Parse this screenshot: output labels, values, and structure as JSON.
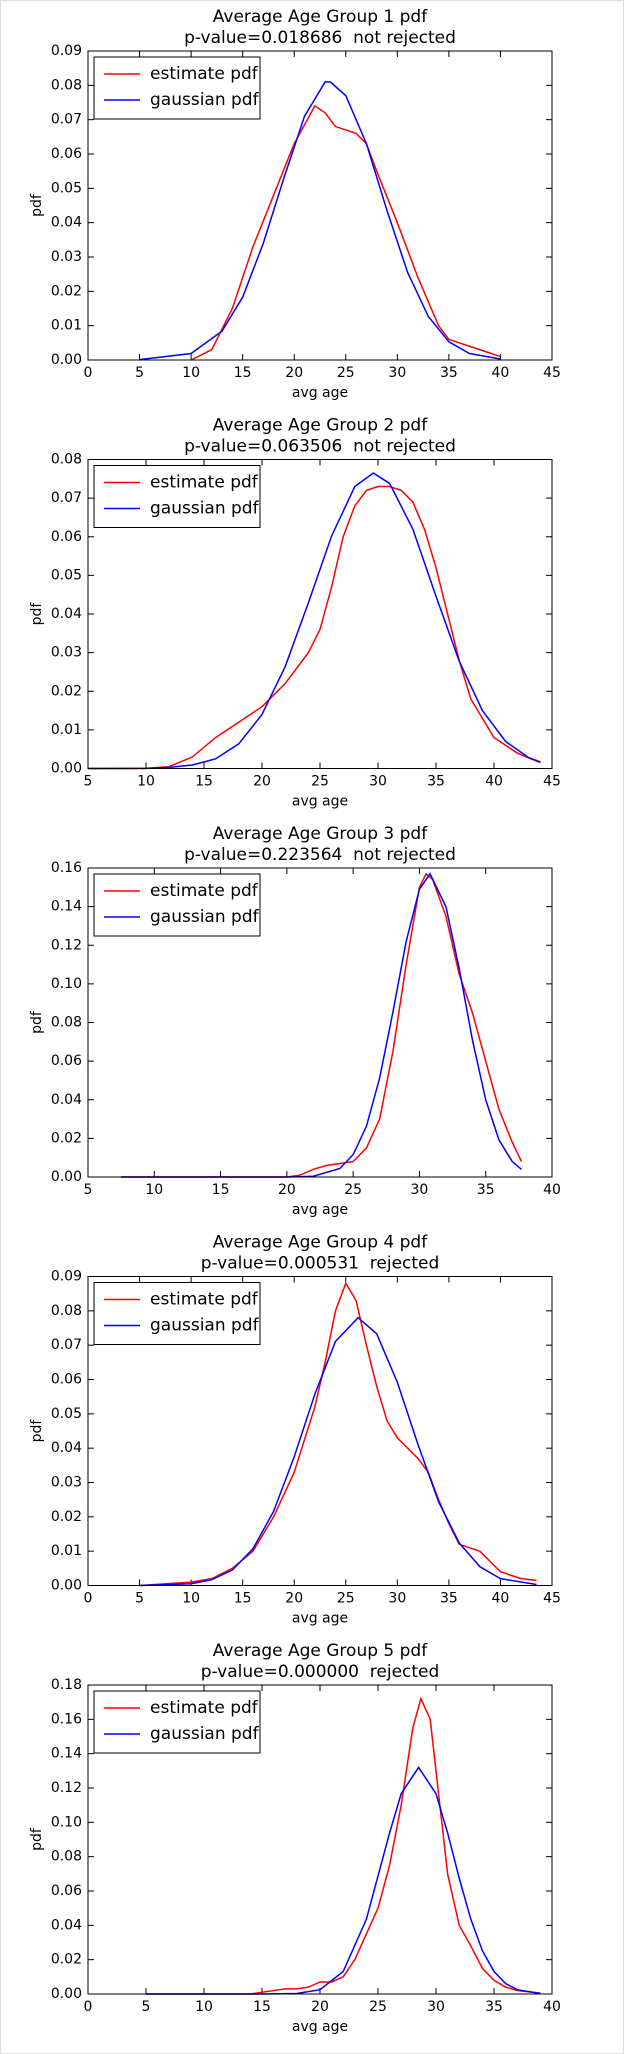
{
  "chart_data": [
    {
      "type": "line",
      "title": "Average Age Group 1 pdf",
      "subtitle": "p-value=0.018686  not rejected",
      "xlabel": "avg age",
      "ylabel": "pdf",
      "legend": "upper left",
      "grid": false,
      "xlim": [
        0,
        45
      ],
      "xticks": [
        0,
        5,
        10,
        15,
        20,
        25,
        30,
        35,
        40,
        45
      ],
      "ylim": [
        0,
        0.09
      ],
      "yticks": [
        {
          "value": 0,
          "label": "0.00"
        },
        {
          "value": 0.01,
          "label": "0.01"
        },
        {
          "value": 0.02,
          "label": "0.02"
        },
        {
          "value": 0.03,
          "label": "0.03"
        },
        {
          "value": 0.04,
          "label": "0.04"
        },
        {
          "value": 0.05,
          "label": "0.05"
        },
        {
          "value": 0.06,
          "label": "0.06"
        },
        {
          "value": 0.07,
          "label": "0.07"
        },
        {
          "value": 0.08,
          "label": "0.08"
        },
        {
          "value": 0.09,
          "label": "0.09"
        }
      ],
      "series": [
        {
          "name": "estimate pdf",
          "color": "#ff0000",
          "x": [
            10,
            12,
            14,
            16,
            18,
            20,
            22,
            23,
            24,
            25,
            26,
            27,
            28,
            30,
            32,
            34,
            35,
            37,
            39,
            40
          ],
          "values": [
            0.0,
            0.003,
            0.015,
            0.033,
            0.048,
            0.063,
            0.074,
            0.072,
            0.068,
            0.067,
            0.066,
            0.063,
            0.055,
            0.04,
            0.024,
            0.01,
            0.006,
            0.004,
            0.002,
            0.001
          ]
        },
        {
          "name": "gaussian pdf",
          "color": "#0000ff",
          "x": [
            5,
            10,
            13,
            15,
            17,
            19,
            21,
            23,
            23.5,
            25,
            27,
            29,
            31,
            33,
            35,
            37,
            40
          ],
          "values": [
            0.0001,
            0.0019,
            0.0084,
            0.0183,
            0.034,
            0.053,
            0.071,
            0.081,
            0.081,
            0.077,
            0.063,
            0.0435,
            0.0255,
            0.0127,
            0.0053,
            0.0019,
            0.0003
          ]
        }
      ]
    },
    {
      "type": "line",
      "title": "Average Age Group 2 pdf",
      "subtitle": "p-value=0.063506  not rejected",
      "xlabel": "avg age",
      "ylabel": "pdf",
      "legend": "upper left",
      "grid": false,
      "xlim": [
        5,
        45
      ],
      "xticks": [
        5,
        10,
        15,
        20,
        25,
        30,
        35,
        40,
        45
      ],
      "ylim": [
        0,
        0.08
      ],
      "yticks": [
        {
          "value": 0,
          "label": "0.00"
        },
        {
          "value": 0.01,
          "label": "0.01"
        },
        {
          "value": 0.02,
          "label": "0.02"
        },
        {
          "value": 0.03,
          "label": "0.03"
        },
        {
          "value": 0.04,
          "label": "0.04"
        },
        {
          "value": 0.05,
          "label": "0.05"
        },
        {
          "value": 0.06,
          "label": "0.06"
        },
        {
          "value": 0.07,
          "label": "0.07"
        },
        {
          "value": 0.08,
          "label": "0.08"
        }
      ],
      "series": [
        {
          "name": "estimate pdf",
          "color": "#ff0000",
          "x": [
            5,
            10,
            12,
            14,
            16,
            18,
            20,
            22,
            24,
            25,
            26,
            27,
            28,
            29,
            30,
            31,
            32,
            33,
            34,
            35,
            36,
            37,
            38,
            40,
            42,
            44
          ],
          "values": [
            0,
            0,
            0.0005,
            0.003,
            0.008,
            0.012,
            0.016,
            0.022,
            0.03,
            0.036,
            0.047,
            0.06,
            0.068,
            0.072,
            0.073,
            0.073,
            0.072,
            0.069,
            0.062,
            0.052,
            0.04,
            0.028,
            0.018,
            0.008,
            0.004,
            0.0015
          ]
        },
        {
          "name": "gaussian pdf",
          "color": "#0000ff",
          "x": [
            5,
            10,
            12,
            14,
            16,
            18,
            20,
            22,
            24,
            26,
            28,
            29.6,
            31,
            33,
            35,
            37,
            39,
            41,
            43,
            44
          ],
          "values": [
            0,
            7e-05,
            0.0003,
            0.0009,
            0.0025,
            0.0064,
            0.014,
            0.0264,
            0.0429,
            0.0602,
            0.073,
            0.0765,
            0.0738,
            0.062,
            0.0446,
            0.0278,
            0.015,
            0.007,
            0.0028,
            0.0017
          ]
        }
      ]
    },
    {
      "type": "line",
      "title": "Average Age Group 3 pdf",
      "subtitle": "p-value=0.223564  not rejected",
      "xlabel": "avg age",
      "ylabel": "pdf",
      "legend": "upper left",
      "grid": false,
      "xlim": [
        5,
        40
      ],
      "xticks": [
        5,
        10,
        15,
        20,
        25,
        30,
        35,
        40
      ],
      "ylim": [
        0,
        0.16
      ],
      "yticks": [
        {
          "value": 0,
          "label": "0.00"
        },
        {
          "value": 0.02,
          "label": "0.02"
        },
        {
          "value": 0.04,
          "label": "0.04"
        },
        {
          "value": 0.06,
          "label": "0.06"
        },
        {
          "value": 0.08,
          "label": "0.08"
        },
        {
          "value": 0.1,
          "label": "0.10"
        },
        {
          "value": 0.12,
          "label": "0.12"
        },
        {
          "value": 0.14,
          "label": "0.14"
        },
        {
          "value": 0.16,
          "label": "0.16"
        }
      ],
      "series": [
        {
          "name": "estimate pdf",
          "color": "#ff0000",
          "x": [
            7.5,
            20,
            21,
            22,
            23,
            24,
            25,
            26,
            27,
            28,
            29,
            30,
            30.5,
            31,
            32,
            33,
            34,
            35,
            36,
            37,
            37.7
          ],
          "values": [
            0,
            0,
            0.001,
            0.004,
            0.006,
            0.007,
            0.008,
            0.015,
            0.03,
            0.065,
            0.11,
            0.15,
            0.157,
            0.154,
            0.135,
            0.105,
            0.085,
            0.06,
            0.035,
            0.018,
            0.008
          ]
        },
        {
          "name": "gaussian pdf",
          "color": "#0000ff",
          "x": [
            7.5,
            20,
            22,
            24,
            25,
            26,
            27,
            28,
            29,
            30,
            30.8,
            32,
            33,
            34,
            35,
            36,
            37,
            37.7
          ],
          "values": [
            0,
            2e-05,
            0.0004,
            0.0044,
            0.0116,
            0.0262,
            0.0513,
            0.0854,
            0.122,
            0.149,
            0.157,
            0.14,
            0.108,
            0.0709,
            0.04,
            0.0192,
            0.008,
            0.0039
          ]
        }
      ]
    },
    {
      "type": "line",
      "title": "Average Age Group 4 pdf",
      "subtitle": "p-value=0.000531  rejected",
      "xlabel": "avg age",
      "ylabel": "pdf",
      "legend": "upper left",
      "grid": false,
      "xlim": [
        0,
        45
      ],
      "xticks": [
        0,
        5,
        10,
        15,
        20,
        25,
        30,
        35,
        40,
        45
      ],
      "ylim": [
        0,
        0.09
      ],
      "yticks": [
        {
          "value": 0,
          "label": "0.00"
        },
        {
          "value": 0.01,
          "label": "0.01"
        },
        {
          "value": 0.02,
          "label": "0.02"
        },
        {
          "value": 0.03,
          "label": "0.03"
        },
        {
          "value": 0.04,
          "label": "0.04"
        },
        {
          "value": 0.05,
          "label": "0.05"
        },
        {
          "value": 0.06,
          "label": "0.06"
        },
        {
          "value": 0.07,
          "label": "0.07"
        },
        {
          "value": 0.08,
          "label": "0.08"
        },
        {
          "value": 0.09,
          "label": "0.09"
        }
      ],
      "series": [
        {
          "name": "estimate pdf",
          "color": "#ff0000",
          "x": [
            5,
            10,
            12,
            14,
            16,
            18,
            20,
            22,
            23,
            24,
            25,
            26,
            27,
            28,
            29,
            30,
            32,
            33,
            34,
            35,
            36,
            38,
            39,
            40,
            42,
            43.5
          ],
          "values": [
            0,
            0.001,
            0.002,
            0.005,
            0.01,
            0.02,
            0.033,
            0.052,
            0.065,
            0.08,
            0.088,
            0.083,
            0.07,
            0.058,
            0.048,
            0.043,
            0.037,
            0.033,
            0.025,
            0.018,
            0.012,
            0.01,
            0.007,
            0.004,
            0.002,
            0.0015
          ]
        },
        {
          "name": "gaussian pdf",
          "color": "#0000ff",
          "x": [
            5,
            10,
            12,
            14,
            16,
            18,
            20,
            22,
            24,
            26.2,
            28,
            30,
            32,
            34,
            36,
            38,
            40,
            43.5
          ],
          "values": [
            1e-05,
            0.0005,
            0.0017,
            0.0045,
            0.0107,
            0.0216,
            0.0375,
            0.0557,
            0.0711,
            0.078,
            0.0733,
            0.0592,
            0.0411,
            0.0244,
            0.0124,
            0.0055,
            0.002,
            0.0003
          ]
        }
      ]
    },
    {
      "type": "line",
      "title": "Average Age Group 5 pdf",
      "subtitle": "p-value=0.000000  rejected",
      "xlabel": "avg age",
      "ylabel": "pdf",
      "legend": "upper left",
      "grid": false,
      "xlim": [
        0,
        40
      ],
      "xticks": [
        0,
        5,
        10,
        15,
        20,
        25,
        30,
        35,
        40
      ],
      "ylim": [
        0,
        0.18
      ],
      "yticks": [
        {
          "value": 0,
          "label": "0.00"
        },
        {
          "value": 0.02,
          "label": "0.02"
        },
        {
          "value": 0.04,
          "label": "0.04"
        },
        {
          "value": 0.06,
          "label": "0.06"
        },
        {
          "value": 0.08,
          "label": "0.08"
        },
        {
          "value": 0.1,
          "label": "0.10"
        },
        {
          "value": 0.12,
          "label": "0.12"
        },
        {
          "value": 0.14,
          "label": "0.14"
        },
        {
          "value": 0.16,
          "label": "0.16"
        },
        {
          "value": 0.18,
          "label": "0.18"
        }
      ],
      "series": [
        {
          "name": "estimate pdf",
          "color": "#ff0000",
          "x": [
            5,
            14,
            15,
            16,
            17,
            18,
            19,
            20,
            21,
            22,
            23,
            24,
            25,
            26,
            27,
            28,
            28.7,
            29.5,
            30,
            31,
            32,
            33,
            34,
            35,
            36,
            37,
            39
          ],
          "values": [
            0,
            0,
            0.001,
            0.002,
            0.003,
            0.003,
            0.004,
            0.007,
            0.007,
            0.01,
            0.02,
            0.035,
            0.05,
            0.075,
            0.11,
            0.155,
            0.172,
            0.16,
            0.13,
            0.07,
            0.04,
            0.028,
            0.015,
            0.008,
            0.004,
            0.002,
            0.0005
          ]
        },
        {
          "name": "gaussian pdf",
          "color": "#0000ff",
          "x": [
            5,
            15,
            18,
            20,
            22,
            24,
            26,
            27,
            28.5,
            30,
            31,
            32,
            33,
            34,
            35,
            36,
            37,
            39
          ],
          "values": [
            0,
            0,
            0.0003,
            0.0025,
            0.0131,
            0.0436,
            0.0939,
            0.1167,
            0.132,
            0.1167,
            0.0939,
            0.0675,
            0.0436,
            0.0252,
            0.0131,
            0.0061,
            0.0025,
            0.0003
          ]
        }
      ]
    }
  ]
}
